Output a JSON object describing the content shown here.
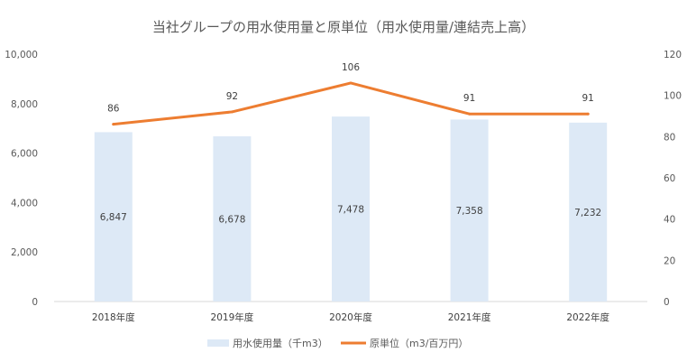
{
  "chart_data": {
    "type": "bar",
    "title": "当社グループの用水使用量と原単位（用水使用量/連結売上高）",
    "categories": [
      "2018年度",
      "2019年度",
      "2020年度",
      "2021年度",
      "2022年度"
    ],
    "series": [
      {
        "name": "用水使用量（千m3）",
        "kind": "bar",
        "axis": "left",
        "color": "#dde9f6",
        "values": [
          6847,
          6678,
          7478,
          7358,
          7232
        ],
        "labels": [
          "6,847",
          "6,678",
          "7,478",
          "7,358",
          "7,232"
        ]
      },
      {
        "name": "原単位（m3/百万円）",
        "kind": "line",
        "axis": "right",
        "color": "#ed7d31",
        "values": [
          86,
          92,
          106,
          91,
          91
        ],
        "labels": [
          "86",
          "92",
          "106",
          "91",
          "91"
        ]
      }
    ],
    "y_left": {
      "ylim": [
        0,
        10000
      ],
      "ticks": [
        "0",
        "2,000",
        "4,000",
        "6,000",
        "8,000",
        "10,000"
      ]
    },
    "y_right": {
      "ylim": [
        0,
        120
      ],
      "ticks": [
        "0",
        "20",
        "40",
        "60",
        "80",
        "100",
        "120"
      ]
    },
    "grid": false,
    "legend": "bottom"
  }
}
